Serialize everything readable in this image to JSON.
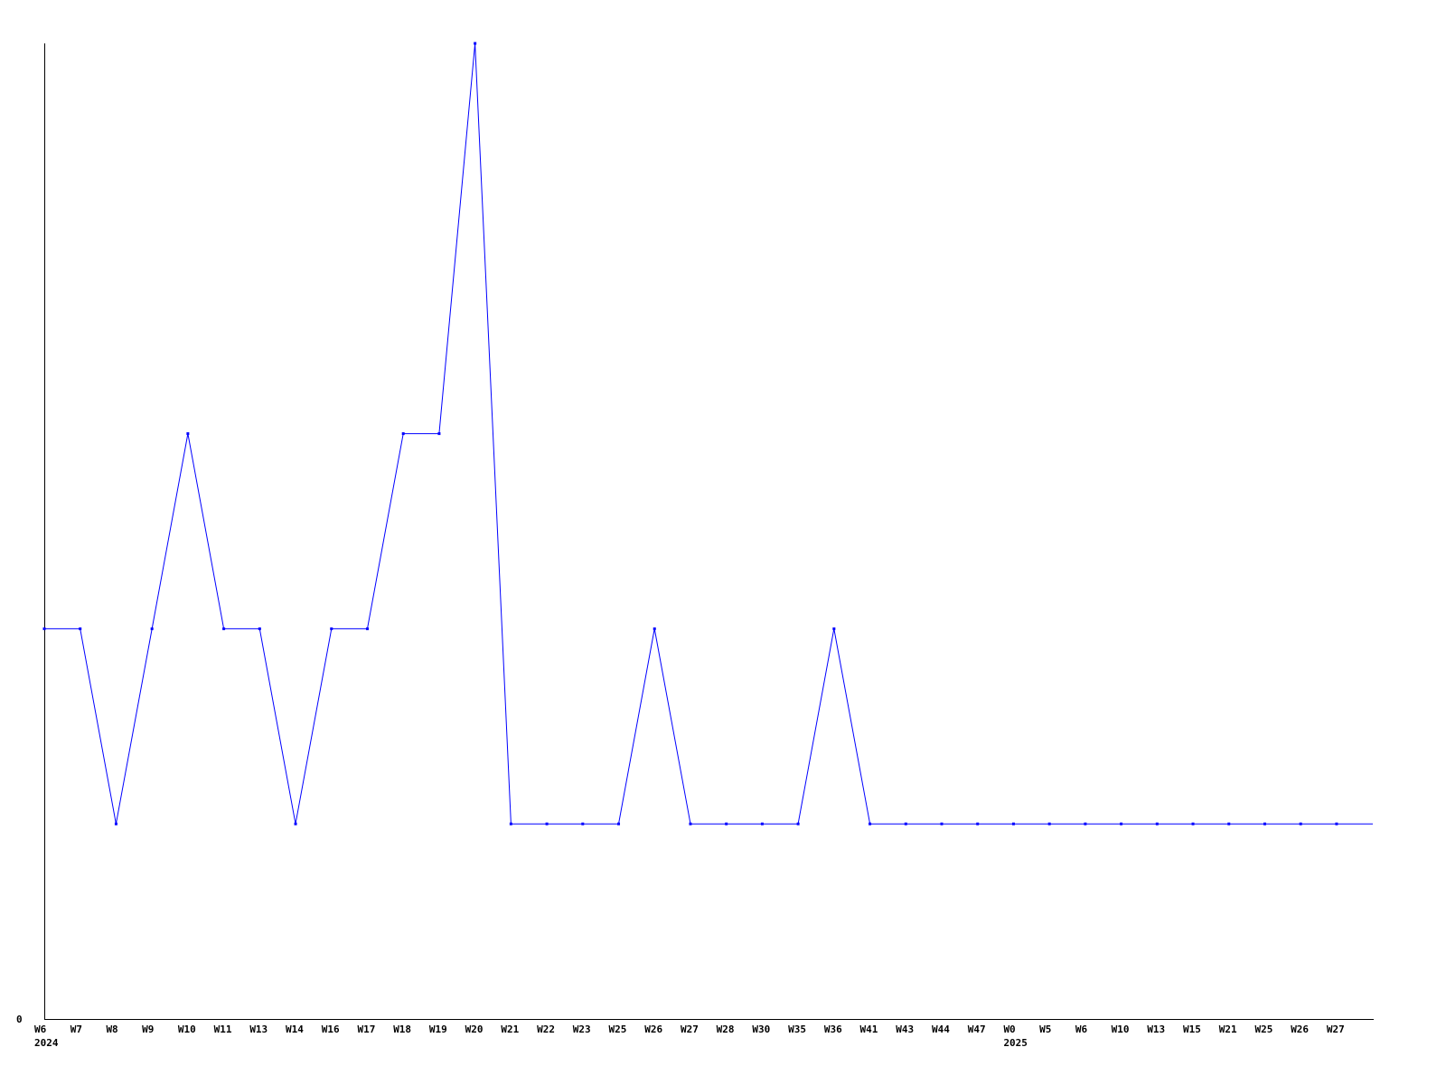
{
  "chart_data": {
    "type": "line",
    "title": "",
    "xlabel": "",
    "ylabel": "",
    "ylim": [
      0,
      5
    ],
    "grid": false,
    "y_tick_labels": [
      "0"
    ],
    "line_color": "#0000ff",
    "categories": [
      "W6",
      "W7",
      "W8",
      "W9",
      "W10",
      "W11",
      "W13",
      "W14",
      "W16",
      "W17",
      "W18",
      "W19",
      "W20",
      "W21",
      "W22",
      "W23",
      "W25",
      "W26",
      "W27",
      "W28",
      "W30",
      "W35",
      "W36",
      "W41",
      "W43",
      "W44",
      "W47",
      "W0",
      "W5",
      "W6",
      "W10",
      "W13",
      "W15",
      "W21",
      "W25",
      "W26",
      "W27"
    ],
    "year_labels": [
      {
        "index": 0,
        "label": "2024"
      },
      {
        "index": 27,
        "label": "2025"
      }
    ],
    "series": [
      {
        "values": [
          2,
          2,
          1,
          2,
          3,
          2,
          2,
          1,
          2,
          2,
          3,
          3,
          5,
          1,
          1,
          1,
          1,
          2,
          1,
          1,
          1,
          1,
          2,
          1,
          1,
          1,
          1,
          1,
          1,
          1,
          1,
          1,
          1,
          1,
          1,
          1,
          1
        ]
      }
    ]
  }
}
